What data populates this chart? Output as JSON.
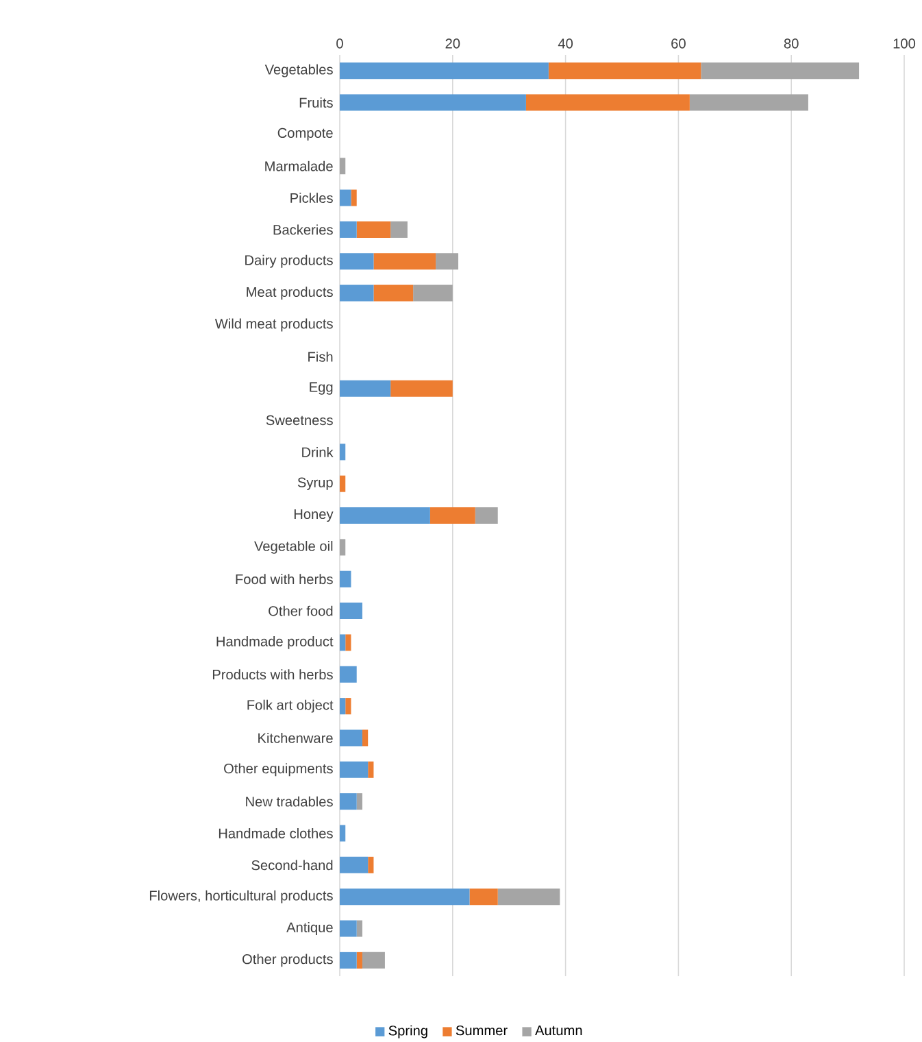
{
  "chart_data": {
    "type": "bar",
    "orientation": "horizontal",
    "stacked": true,
    "categories": [
      "Vegetables",
      "Fruits",
      "Compote",
      "Marmalade",
      "Pickles",
      "Backeries",
      "Dairy products",
      "Meat products",
      "Wild meat products",
      "Fish",
      "Egg",
      "Sweetness",
      "Drink",
      "Syrup",
      "Honey",
      "Vegetable oil",
      "Food with herbs",
      "Other food",
      "Handmade product",
      "Products with herbs",
      "Folk art object",
      "Kitchenware",
      "Other equipments",
      "New tradables",
      "Handmade clothes",
      "Second-hand",
      "Flowers, horticultural products",
      "Antique",
      "Other products"
    ],
    "series": [
      {
        "name": "Spring",
        "color": "#5b9bd5",
        "values": [
          37,
          33,
          0,
          0,
          2,
          3,
          6,
          6,
          0,
          0,
          9,
          0,
          1,
          0,
          16,
          0,
          2,
          4,
          1,
          3,
          1,
          4,
          5,
          3,
          1,
          5,
          23,
          3,
          3
        ]
      },
      {
        "name": "Summer",
        "color": "#ed7d31",
        "values": [
          27,
          29,
          0,
          0,
          1,
          6,
          11,
          7,
          0,
          0,
          11,
          0,
          0,
          1,
          8,
          0,
          0,
          0,
          1,
          0,
          1,
          1,
          1,
          0,
          0,
          1,
          5,
          0,
          1
        ]
      },
      {
        "name": "Autumn",
        "color": "#a5a5a5",
        "values": [
          28,
          21,
          0,
          1,
          0,
          3,
          4,
          7,
          0,
          0,
          0,
          0,
          0,
          0,
          4,
          1,
          0,
          0,
          0,
          0,
          0,
          0,
          0,
          1,
          0,
          0,
          11,
          1,
          4
        ]
      }
    ],
    "xlim": [
      0,
      100
    ],
    "xticks": [
      0,
      20,
      40,
      60,
      80,
      100
    ],
    "grid": "x",
    "legend": "bottom"
  }
}
